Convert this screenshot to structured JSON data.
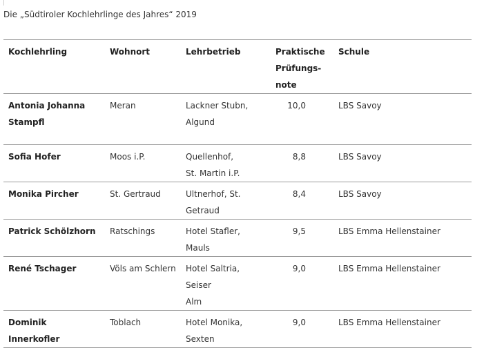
{
  "caption": "Die „Südtiroler Kochlehrlinge des Jahres“ 2019",
  "table": {
    "headers": {
      "name": "Kochlehrling",
      "town": "Wohnort",
      "company": "Lehrbetrieb",
      "grade_line1": "Praktische",
      "grade_line2": "Prüfungs-",
      "grade_line3": "note",
      "school": "Schule"
    },
    "rows": [
      {
        "name_line1": "Antonia Johanna",
        "name_line2": "Stampfl",
        "town": "Meran",
        "company_line1": "Lackner Stubn,",
        "company_line2": "Algund",
        "grade": "10,0",
        "school": "LBS Savoy"
      },
      {
        "name_line1": "Sofia Hofer",
        "name_line2": "",
        "town": "Moos i.P.",
        "company_line1": "Quellenhof,",
        "company_line2": "St. Martin i.P.",
        "grade": "8,8",
        "school": "LBS Savoy"
      },
      {
        "name_line1": "Monika Pircher",
        "name_line2": "",
        "town": "St. Gertraud",
        "company_line1": "Ultnerhof, St.",
        "company_line2": "Getraud",
        "grade": "8,4",
        "school": "LBS Savoy"
      },
      {
        "name_line1": "Patrick Schölzhorn",
        "name_line2": "",
        "town": "Ratschings",
        "company_line1": "Hotel Stafler,",
        "company_line2": "Mauls",
        "grade": "9,5",
        "school": "LBS Emma Hellenstainer"
      },
      {
        "name_line1": "René Tschager",
        "name_line2": "",
        "town": "Völs am Schlern",
        "company_line1": "Hotel Saltria, Seiser",
        "company_line2": "Alm",
        "grade": "9,0",
        "school": "LBS Emma Hellenstainer"
      },
      {
        "name_line1": "Dominik Innerkofler",
        "name_line2": "",
        "town": "Toblach",
        "company_line1": "Hotel Monika,",
        "company_line2": "Sexten",
        "grade": "9,0",
        "school": "LBS Emma Hellenstainer"
      }
    ]
  }
}
